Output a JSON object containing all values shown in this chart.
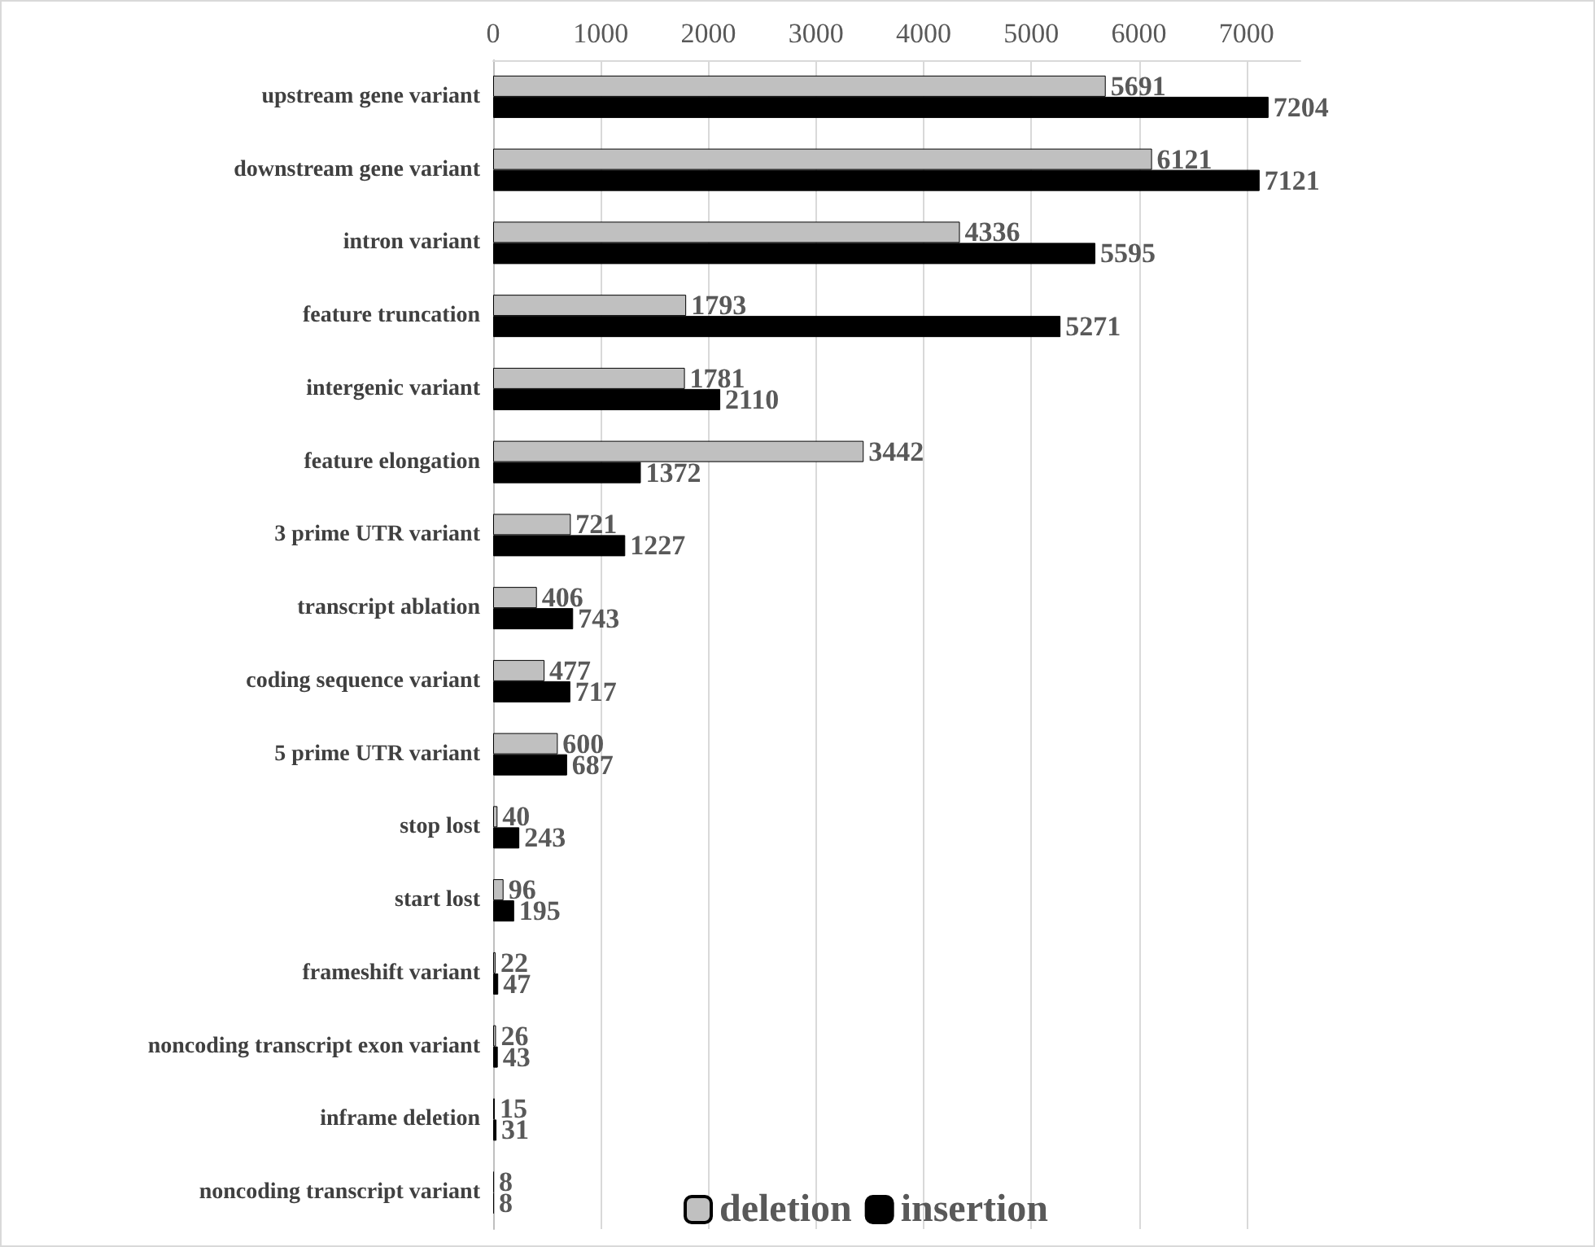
{
  "chart_data": {
    "type": "bar",
    "orientation": "horizontal",
    "categories": [
      "upstream gene variant",
      "downstream gene variant",
      "intron variant",
      "feature truncation",
      "intergenic variant",
      "feature elongation",
      "3 prime UTR variant",
      "transcript ablation",
      "coding sequence variant",
      "5 prime UTR variant",
      "stop lost",
      "start lost",
      "frameshift variant",
      "noncoding transcript exon variant",
      "inframe deletion",
      "noncoding transcript variant"
    ],
    "series": [
      {
        "name": "deletion",
        "color": "#c0c0c0",
        "values": [
          5691,
          6121,
          4336,
          1793,
          1781,
          3442,
          721,
          406,
          477,
          600,
          40,
          96,
          22,
          26,
          15,
          8
        ]
      },
      {
        "name": "insertion",
        "color": "#000000",
        "values": [
          7204,
          7121,
          5595,
          5271,
          2110,
          1372,
          1227,
          743,
          717,
          687,
          243,
          195,
          47,
          43,
          31,
          8
        ]
      }
    ],
    "xlim": [
      0,
      7500
    ],
    "xticks": [
      0,
      1000,
      2000,
      3000,
      4000,
      5000,
      6000,
      7000
    ],
    "grid": "x",
    "legend": "bottom right",
    "data_labels": true
  }
}
